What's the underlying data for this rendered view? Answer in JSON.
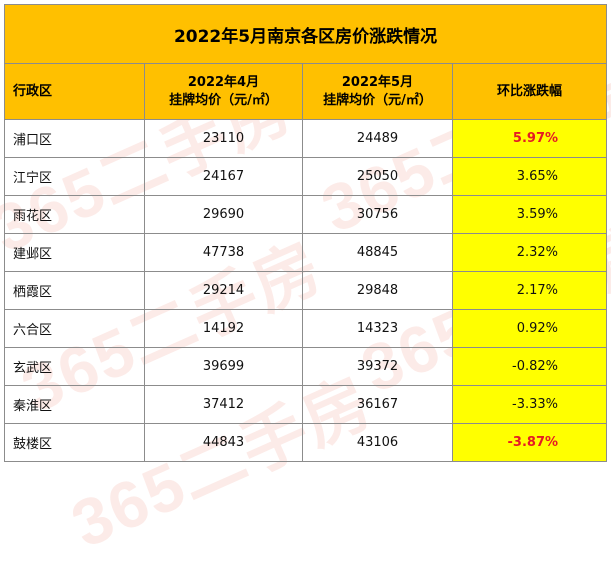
{
  "table": {
    "title": "2022年5月南京各区房价涨跌情况",
    "headers": {
      "district": "行政区",
      "april_line1": "2022年4月",
      "april_line2": "挂牌均价（元/㎡）",
      "may_line1": "2022年5月",
      "may_line2": "挂牌均价（元/㎡）",
      "change": "环比涨跌幅"
    },
    "rows": [
      {
        "district": "浦口区",
        "april": "23110",
        "may": "24489",
        "change": "5.97%"
      },
      {
        "district": "江宁区",
        "april": "24167",
        "may": "25050",
        "change": "3.65%"
      },
      {
        "district": "雨花区",
        "april": "29690",
        "may": "30756",
        "change": "3.59%"
      },
      {
        "district": "建邺区",
        "april": "47738",
        "may": "48845",
        "change": "2.32%"
      },
      {
        "district": "栖霞区",
        "april": "29214",
        "may": "29848",
        "change": "2.17%"
      },
      {
        "district": "六合区",
        "april": "14192",
        "may": "14323",
        "change": "0.92%"
      },
      {
        "district": "玄武区",
        "april": "39699",
        "may": "39372",
        "change": "-0.82%"
      },
      {
        "district": "秦淮区",
        "april": "37412",
        "may": "36167",
        "change": "-3.33%"
      },
      {
        "district": "鼓楼区",
        "april": "44843",
        "may": "43106",
        "change": "-3.87%"
      }
    ]
  },
  "colors": {
    "header_fill": "#ffc000",
    "change_fill": "#ffff00",
    "highlight_text": "#e51b24"
  },
  "watermark": {
    "text": "365二手房"
  }
}
